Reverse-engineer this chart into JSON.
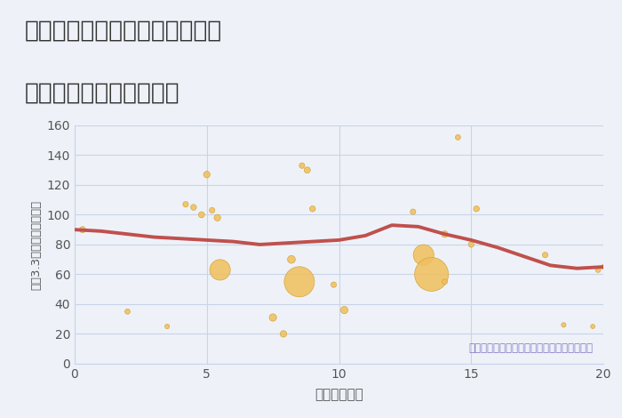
{
  "title_line1": "兵庫県神戸市須磨区上細沢町の",
  "title_line2": "駅距離別中古戸建て価格",
  "xlabel": "駅距離（分）",
  "ylabel": "坪（3.3㎡）単価（万円）",
  "annotation": "円の大きさは、取引のあった物件面積を示す",
  "bg_color": "#eef2f8",
  "scatter_color": "#f0c060",
  "scatter_edge_color": "#d4a030",
  "line_color": "#c0504d",
  "scatter_x": [
    0.3,
    2.0,
    3.5,
    4.2,
    4.5,
    4.8,
    5.0,
    5.2,
    5.4,
    5.5,
    7.5,
    7.9,
    8.2,
    8.5,
    8.6,
    8.8,
    9.0,
    9.8,
    10.2,
    12.8,
    13.2,
    13.5,
    14.0,
    14.0,
    14.5,
    15.0,
    15.2,
    17.8,
    18.5,
    19.6,
    19.8,
    20.0
  ],
  "scatter_y": [
    90,
    35,
    25,
    107,
    105,
    100,
    127,
    103,
    98,
    63,
    31,
    20,
    70,
    55,
    133,
    130,
    104,
    53,
    36,
    102,
    73,
    60,
    55,
    87,
    152,
    80,
    104,
    73,
    26,
    25,
    63,
    65
  ],
  "scatter_size": [
    25,
    18,
    14,
    20,
    22,
    24,
    28,
    20,
    28,
    280,
    35,
    28,
    40,
    600,
    20,
    25,
    22,
    20,
    35,
    20,
    280,
    750,
    18,
    28,
    18,
    20,
    22,
    20,
    14,
    12,
    18,
    14
  ],
  "line_x": [
    0,
    1,
    2,
    3,
    4,
    5,
    6,
    7,
    8,
    9,
    10,
    11,
    12,
    13,
    14,
    15,
    16,
    17,
    18,
    19,
    20
  ],
  "line_y": [
    90,
    89,
    87,
    85,
    84,
    83,
    82,
    80,
    81,
    82,
    83,
    86,
    93,
    92,
    87,
    83,
    78,
    72,
    66,
    64,
    65
  ],
  "xlim": [
    0,
    20
  ],
  "ylim": [
    0,
    160
  ],
  "yticks": [
    0,
    20,
    40,
    60,
    80,
    100,
    120,
    140,
    160
  ],
  "xticks": [
    0,
    5,
    10,
    15,
    20
  ],
  "annotation_color": "#8878c8",
  "title_color": "#333333",
  "tick_color": "#555555",
  "grid_color": "#c8d4e8"
}
